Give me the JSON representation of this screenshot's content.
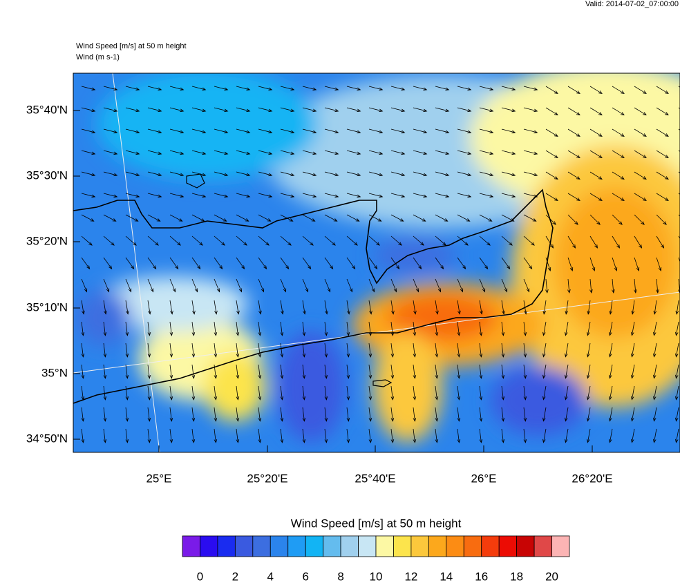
{
  "header": {
    "valid": "Valid: 2014-07-02_07:00:00",
    "title": "Wind Speed [m/s] at 50 m height",
    "subtitle": "Wind   (m s-1)"
  },
  "map": {
    "lat_labels": [
      "35°40'N",
      "35°30'N",
      "35°20'N",
      "35°10'N",
      "35°N",
      "34°50'N"
    ],
    "lon_labels": [
      "25°E",
      "25°20'E",
      "25°40'E",
      "26°E",
      "26°20'E"
    ]
  },
  "colorbar": {
    "title": "Wind Speed [m/s] at 50 m height",
    "colors": [
      "#7a1be8",
      "#2a0cf0",
      "#1a2cf0",
      "#3a5ae0",
      "#3c6ee0",
      "#2b84ec",
      "#1f9cf4",
      "#12b4f4",
      "#64bcee",
      "#a0d0ee",
      "#c8e6f4",
      "#fcf8a4",
      "#fce44c",
      "#fcc83c",
      "#fca81c",
      "#fc8c14",
      "#f86c10",
      "#f43c0c",
      "#ec0c04",
      "#c80404",
      "#e04848",
      "#fcb4b4"
    ],
    "ticks": [
      0,
      2,
      4,
      6,
      8,
      10,
      12,
      14,
      16,
      18,
      20
    ]
  }
}
